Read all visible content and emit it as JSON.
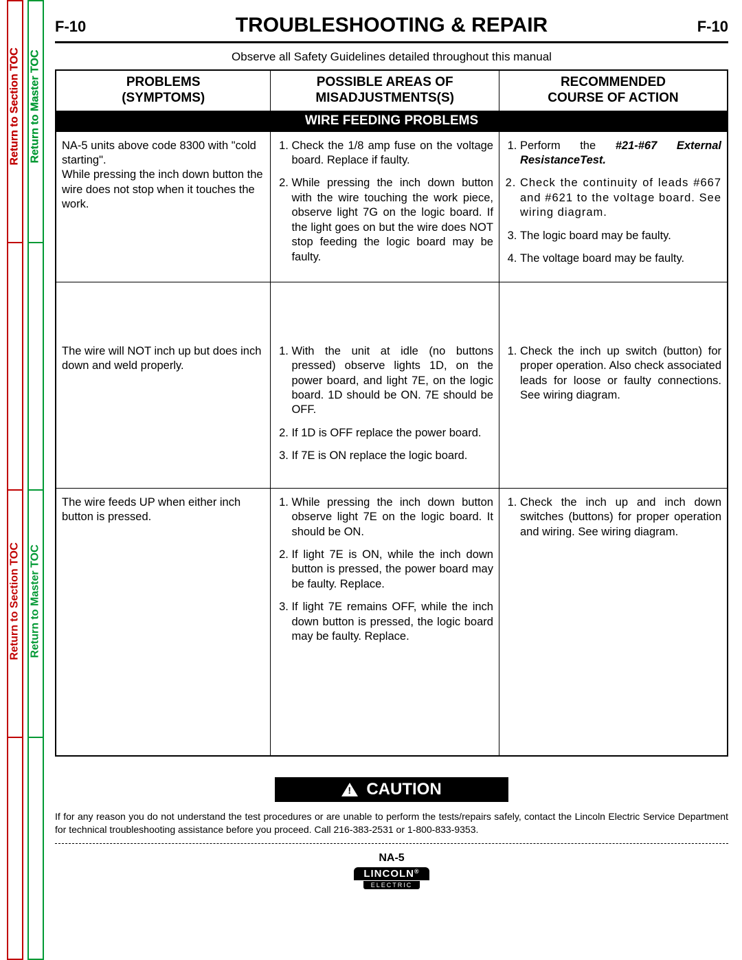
{
  "side_tabs": {
    "section_label": "Return to Section TOC",
    "master_label": "Return to Master TOC",
    "colors": {
      "section": "#c00000",
      "master": "#009933"
    }
  },
  "header": {
    "page_num_left": "F-10",
    "title": "TROUBLESHOOTING & REPAIR",
    "page_num_right": "F-10"
  },
  "subtitle": "Observe all Safety Guidelines detailed throughout this manual",
  "table": {
    "columns": [
      "PROBLEMS (SYMPTOMS)",
      "POSSIBLE AREAS OF MISADJUSTMENTS(S)",
      "RECOMMENDED COURSE OF ACTION"
    ],
    "section_title": "WIRE FEEDING PROBLEMS",
    "rows": [
      {
        "problem": "NA-5 units above code 8300 with \"cold starting\".\nWhile pressing the inch down button the wire does not stop when it touches the work.",
        "misadjust": [
          "Check the 1/8 amp fuse on the voltage board.  Replace if faulty.",
          "While pressing the inch down button with the wire touching the work piece, observe light 7G on the logic board.  If the light goes on but the wire does NOT stop feeding the logic board may be faulty."
        ],
        "action": [
          {
            "pre": "Perform the ",
            "bold_italic": "#21-#67 External ResistanceTest.",
            "post": ""
          },
          "Check the continuity of leads #667 and #621 to the voltage board.  See wiring diagram.",
          "The logic board may be faulty.",
          "The voltage board may be faulty."
        ]
      },
      {
        "problem": "The wire will NOT inch up but does inch down and weld properly.",
        "misadjust": [
          "With the unit at idle (no buttons pressed) observe lights 1D, on the power board, and light 7E, on the logic board.  1D should be ON.  7E should be OFF.",
          "If 1D is OFF replace the power board.",
          "If 7E is ON replace the logic board."
        ],
        "action": [
          "Check the inch up switch (button) for proper operation.  Also check associated leads for loose or faulty connections.  See wiring diagram."
        ]
      },
      {
        "problem": "The wire feeds UP when either inch button is pressed.",
        "misadjust": [
          "While pressing the inch down button observe light 7E on the logic board.  It should be ON.",
          "If light 7E is ON, while the inch down button is pressed, the power board may be faulty.  Replace.",
          "If light 7E remains OFF,  while the inch down button is pressed, the logic board may be faulty.  Replace."
        ],
        "action": [
          "Check the inch up and inch down switches (buttons) for proper operation and wiring.  See wiring diagram."
        ]
      }
    ]
  },
  "caution": {
    "label": "CAUTION",
    "text": "If for any reason you do not understand the test procedures or are unable to perform the tests/repairs safely, contact the Lincoln Electric Service Department for technical troubleshooting assistance before you proceed. Call 216-383-2531 or 1-800-833-9353."
  },
  "footer": {
    "model": "NA-5",
    "logo_top": "LINCOLN",
    "logo_reg": "®",
    "logo_bottom": "ELECTRIC"
  }
}
